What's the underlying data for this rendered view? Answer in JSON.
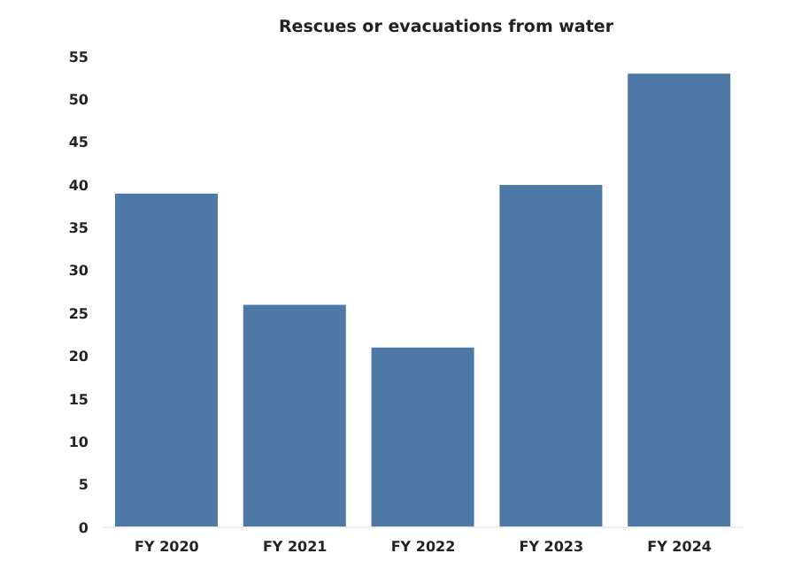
{
  "chart_data": {
    "type": "bar",
    "title": "Rescues or evacuations from water",
    "categories": [
      "FY 2020",
      "FY 2021",
      "FY 2022",
      "FY 2023",
      "FY 2024"
    ],
    "values": [
      39,
      26,
      21,
      40,
      53
    ],
    "color": "#4e79a7",
    "ylim": [
      0,
      55
    ],
    "yticks": [
      0,
      5,
      10,
      15,
      20,
      25,
      30,
      35,
      40,
      45,
      50,
      55
    ],
    "grid": false
  }
}
